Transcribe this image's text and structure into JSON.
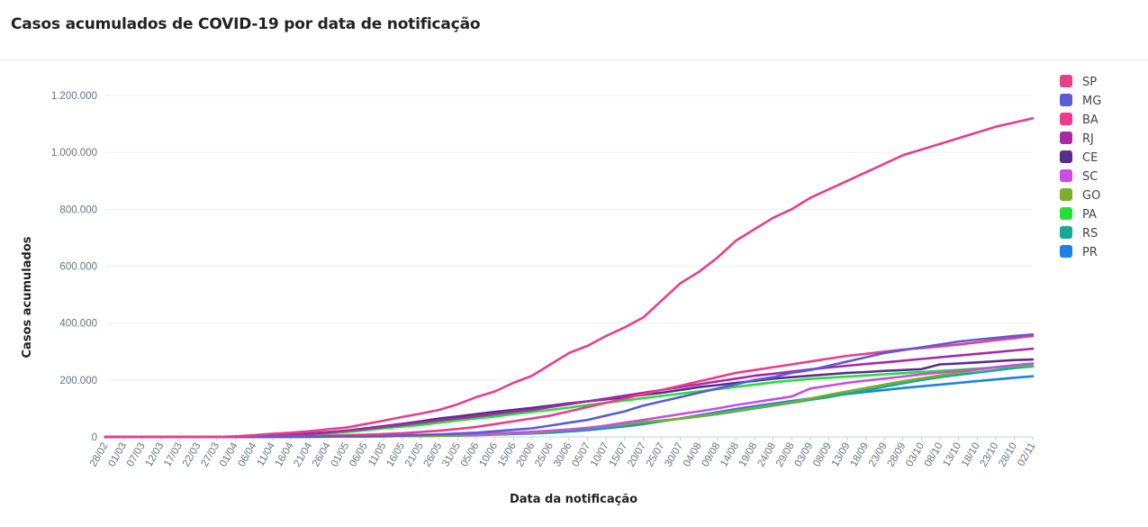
{
  "title": "Casos acumulados de COVID-19 por data de notificação",
  "chart_data": {
    "type": "line",
    "title": "Casos acumulados de COVID-19 por data de notificação",
    "xlabel": "Data da notificação",
    "ylabel": "Casos acumulados",
    "ylim": [
      0,
      1200000
    ],
    "yticks": [
      0,
      200000,
      400000,
      600000,
      800000,
      1000000,
      1200000
    ],
    "ytick_labels": [
      "0",
      "200.000",
      "400.000",
      "600.000",
      "800.000",
      "1.000.000",
      "1.200.000"
    ],
    "xtick_labels": [
      "28/02",
      "01/03",
      "07/03",
      "12/03",
      "17/03",
      "22/03",
      "27/03",
      "01/04",
      "06/04",
      "11/04",
      "16/04",
      "21/04",
      "26/04",
      "01/05",
      "06/05",
      "11/05",
      "16/05",
      "21/05",
      "26/05",
      "31/05",
      "05/06",
      "10/06",
      "15/06",
      "20/06",
      "25/06",
      "30/06",
      "05/07",
      "10/07",
      "15/07",
      "20/07",
      "25/07",
      "30/07",
      "04/08",
      "09/08",
      "14/08",
      "19/08",
      "24/08",
      "29/08",
      "03/09",
      "08/09",
      "13/09",
      "18/09",
      "23/09",
      "28/09",
      "03/10",
      "08/10",
      "13/10",
      "18/10",
      "23/10",
      "28/10",
      "02/11"
    ],
    "grid": true,
    "legend_position": "right",
    "series": [
      {
        "name": "SP",
        "color": "#e83e8c",
        "values": [
          0,
          0,
          0,
          0,
          0,
          0,
          0,
          2000,
          6000,
          11000,
          15000,
          20000,
          27000,
          33000,
          45000,
          57000,
          70000,
          82000,
          95000,
          115000,
          140000,
          160000,
          190000,
          215000,
          255000,
          295000,
          320000,
          355000,
          385000,
          420000,
          480000,
          540000,
          580000,
          630000,
          690000,
          730000,
          770000,
          800000,
          840000,
          870000,
          900000,
          930000,
          960000,
          990000,
          1010000,
          1030000,
          1050000,
          1070000,
          1090000,
          1105000,
          1120000
        ]
      },
      {
        "name": "MG",
        "color": "#5b5bd6",
        "values": [
          0,
          0,
          0,
          0,
          0,
          0,
          0,
          0,
          0,
          0,
          0,
          1000,
          1000,
          2000,
          2000,
          3000,
          5000,
          7000,
          9000,
          12000,
          15000,
          20000,
          25000,
          30000,
          40000,
          50000,
          60000,
          75000,
          90000,
          110000,
          125000,
          140000,
          155000,
          170000,
          185000,
          200000,
          210000,
          225000,
          235000,
          250000,
          265000,
          280000,
          295000,
          305000,
          315000,
          325000,
          335000,
          342000,
          348000,
          355000,
          360000
        ]
      },
      {
        "name": "BA",
        "color": "#ec3c8a",
        "values": [
          0,
          0,
          0,
          0,
          0,
          0,
          0,
          0,
          0,
          1000,
          2000,
          3000,
          4000,
          6000,
          8000,
          10000,
          13000,
          17000,
          22000,
          28000,
          35000,
          45000,
          55000,
          65000,
          75000,
          90000,
          105000,
          120000,
          135000,
          150000,
          165000,
          180000,
          195000,
          210000,
          225000,
          235000,
          245000,
          255000,
          265000,
          275000,
          285000,
          292000,
          300000,
          307000,
          312000,
          318000,
          325000,
          332000,
          340000,
          347000,
          355000
        ]
      },
      {
        "name": "RJ",
        "color": "#a62ba3",
        "values": [
          0,
          0,
          0,
          0,
          0,
          0,
          0,
          1000,
          3000,
          5000,
          8000,
          12000,
          17000,
          22000,
          28000,
          35000,
          42000,
          50000,
          58000,
          65000,
          72000,
          80000,
          88000,
          95000,
          105000,
          115000,
          125000,
          135000,
          145000,
          155000,
          165000,
          175000,
          185000,
          195000,
          205000,
          215000,
          222000,
          230000,
          237000,
          244000,
          250000,
          256000,
          262000,
          268000,
          274000,
          280000,
          286000,
          292000,
          298000,
          304000,
          310000
        ]
      },
      {
        "name": "CE",
        "color": "#5a2c8e",
        "values": [
          0,
          0,
          0,
          0,
          0,
          0,
          0,
          1000,
          2000,
          4000,
          7000,
          11000,
          16000,
          22000,
          30000,
          38000,
          46000,
          55000,
          65000,
          72000,
          80000,
          88000,
          95000,
          102000,
          110000,
          118000,
          125000,
          132000,
          140000,
          148000,
          155000,
          165000,
          175000,
          182000,
          190000,
          197000,
          205000,
          210000,
          215000,
          220000,
          225000,
          228000,
          232000,
          235000,
          238000,
          255000,
          258000,
          262000,
          266000,
          270000,
          272000
        ]
      },
      {
        "name": "SC",
        "color": "#c94de0",
        "values": [
          0,
          0,
          0,
          0,
          0,
          0,
          0,
          0,
          0,
          0,
          1000,
          1000,
          2000,
          3000,
          4000,
          5000,
          6000,
          7000,
          8000,
          9000,
          10000,
          12000,
          15000,
          18000,
          22000,
          26000,
          32000,
          40000,
          50000,
          60000,
          70000,
          80000,
          90000,
          100000,
          112000,
          122000,
          132000,
          142000,
          170000,
          180000,
          190000,
          198000,
          205000,
          212000,
          220000,
          226000,
          232000,
          238000,
          245000,
          252000,
          258000
        ]
      },
      {
        "name": "GO",
        "color": "#7cae2a",
        "values": [
          0,
          0,
          0,
          0,
          0,
          0,
          0,
          0,
          0,
          0,
          0,
          0,
          1000,
          1000,
          2000,
          2000,
          3000,
          3000,
          4000,
          5000,
          7000,
          9000,
          12000,
          15000,
          20000,
          26000,
          32000,
          38000,
          45000,
          52000,
          58000,
          64000,
          72000,
          82000,
          92000,
          102000,
          112000,
          122000,
          135000,
          148000,
          160000,
          172000,
          184000,
          196000,
          206000,
          216000,
          226000,
          236000,
          244000,
          252000,
          258000
        ]
      },
      {
        "name": "PA",
        "color": "#22e03a",
        "values": [
          0,
          0,
          0,
          0,
          0,
          0,
          0,
          0,
          1000,
          2000,
          4000,
          7000,
          12000,
          17000,
          23000,
          30000,
          36000,
          42000,
          50000,
          58000,
          65000,
          72000,
          80000,
          88000,
          95000,
          103000,
          112000,
          120000,
          128000,
          136000,
          144000,
          152000,
          160000,
          168000,
          176000,
          184000,
          192000,
          198000,
          204000,
          208000,
          212000,
          216000,
          220000,
          224000,
          228000,
          232000,
          236000,
          240000,
          244000,
          248000,
          252000
        ]
      },
      {
        "name": "RS",
        "color": "#18a894",
        "values": [
          0,
          0,
          0,
          0,
          0,
          0,
          0,
          0,
          0,
          0,
          0,
          1000,
          1000,
          2000,
          2000,
          3000,
          3000,
          4000,
          5000,
          6000,
          7000,
          9000,
          11000,
          14000,
          18000,
          22000,
          28000,
          34000,
          40000,
          48000,
          56000,
          64000,
          72000,
          80000,
          90000,
          100000,
          110000,
          120000,
          130000,
          140000,
          152000,
          164000,
          176000,
          188000,
          200000,
          210000,
          218000,
          226000,
          234000,
          242000,
          248000
        ]
      },
      {
        "name": "PR",
        "color": "#1a82e6",
        "values": [
          0,
          0,
          0,
          0,
          0,
          0,
          0,
          0,
          0,
          0,
          0,
          0,
          1000,
          1000,
          2000,
          2000,
          3000,
          3000,
          4000,
          5000,
          6000,
          8000,
          10000,
          12000,
          15000,
          19000,
          24000,
          30000,
          37000,
          45000,
          55000,
          65000,
          76000,
          87000,
          98000,
          108000,
          117000,
          126000,
          135000,
          143000,
          151000,
          158000,
          165000,
          172000,
          178000,
          184000,
          190000,
          196000,
          202000,
          208000,
          213000
        ]
      }
    ]
  }
}
